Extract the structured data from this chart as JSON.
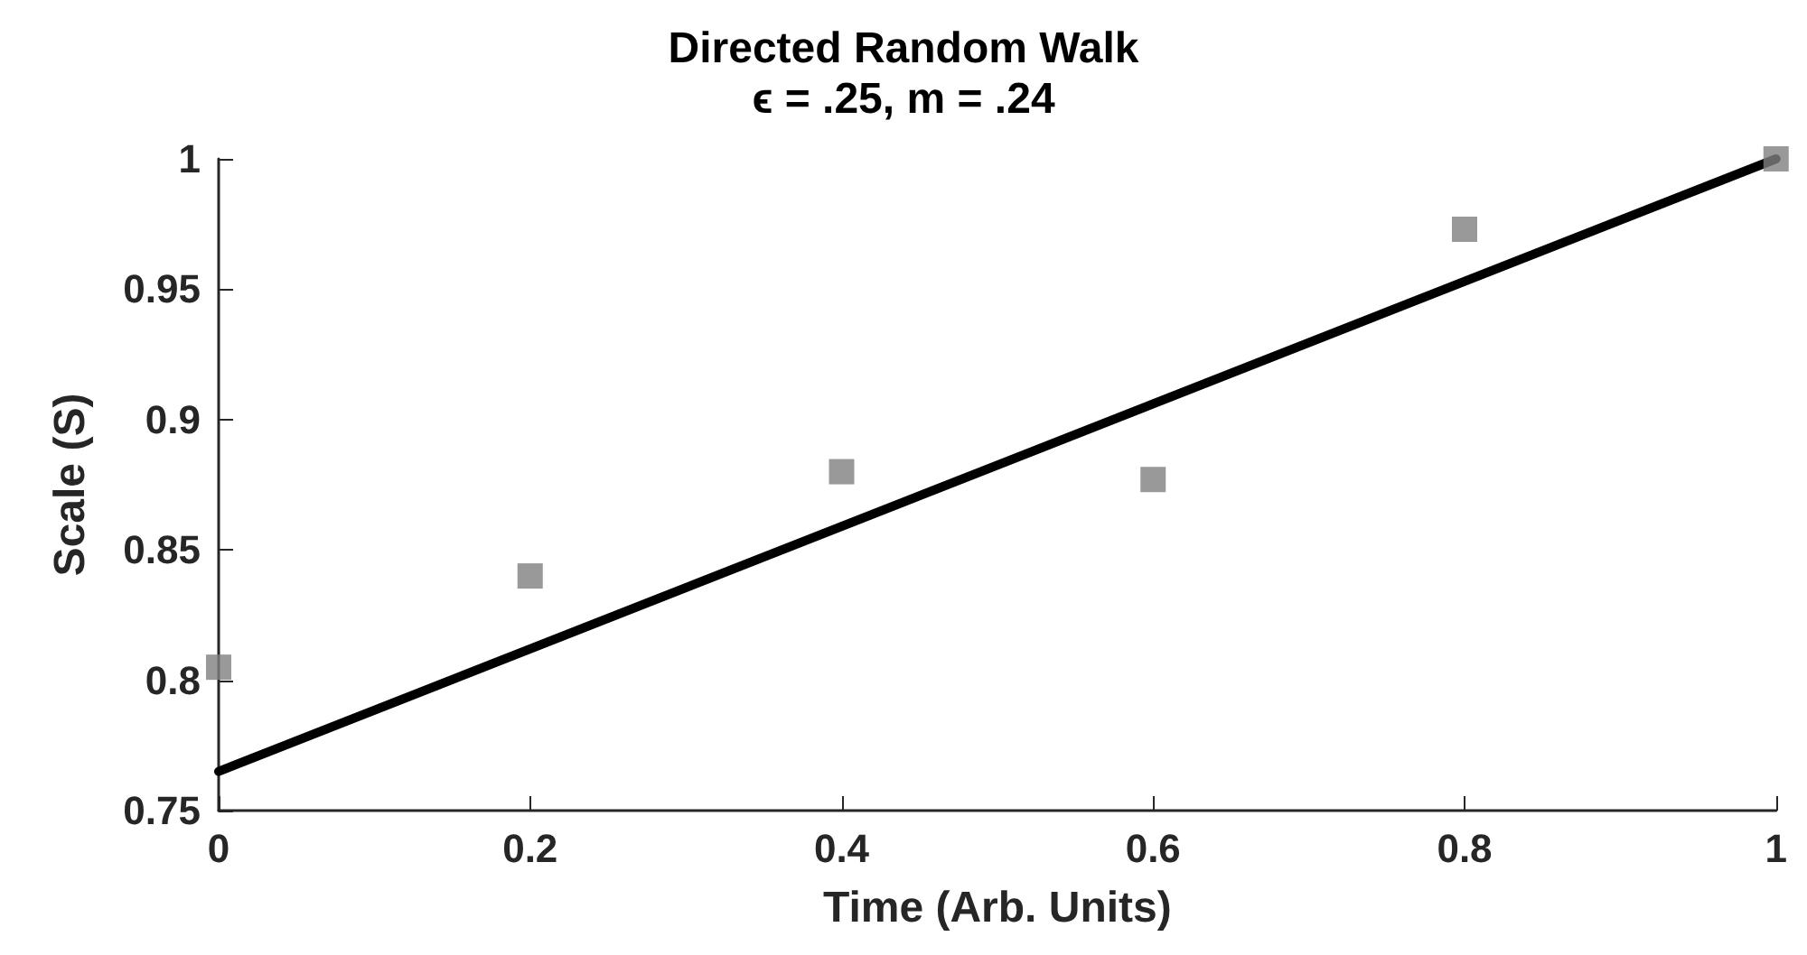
{
  "chart_data": {
    "type": "scatter",
    "title": "Directed Random Walk",
    "subtitle": "ϵ = .25, m = .24",
    "xlabel": "Time (Arb. Units)",
    "ylabel": "Scale (S)",
    "xlim": [
      0,
      1
    ],
    "ylim": [
      0.75,
      1
    ],
    "xticks": [
      0,
      0.2,
      0.4,
      0.6,
      0.8,
      1
    ],
    "yticks": [
      0.75,
      0.8,
      0.85,
      0.9,
      0.95,
      1
    ],
    "series": [
      {
        "color": "#808080",
        "marker": "square",
        "x": [
          0,
          0.2,
          0.4,
          0.6,
          0.8,
          1
        ],
        "values": [
          0.805,
          0.84,
          0.88,
          0.877,
          0.973,
          1
        ]
      },
      {
        "type": "line",
        "color": "#000000",
        "marker": "none",
        "line_style": "solid",
        "x": [
          0,
          1
        ],
        "values": [
          0.765,
          1
        ]
      }
    ]
  }
}
